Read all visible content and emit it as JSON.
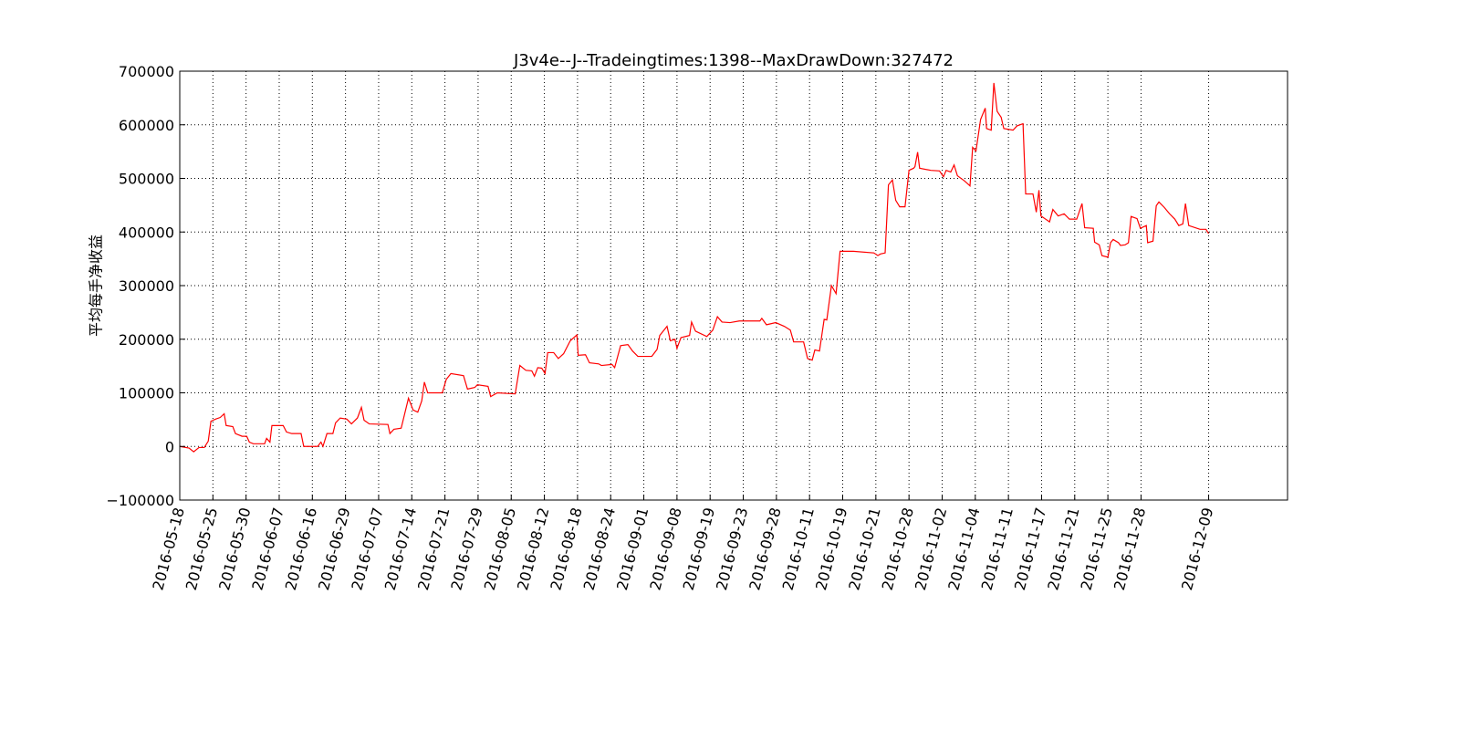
{
  "chart_data": {
    "type": "line",
    "title": "J3v4e--J--Tradeingtimes:1398--MaxDrawDown:327472",
    "y_label": "平均每手净收益",
    "color": "#ff0000",
    "grid": true,
    "xlim": [
      0,
      1671
    ],
    "ylim": [
      -100000,
      700000
    ],
    "yticks": [
      {
        "value": -100000,
        "label": "−100000"
      },
      0,
      100000,
      200000,
      300000,
      400000,
      500000,
      600000,
      700000
    ],
    "xticks": [
      {
        "value": 0,
        "label": "2016-05-18"
      },
      {
        "value": 50,
        "label": "2016-05-25"
      },
      {
        "value": 100,
        "label": "2016-05-30"
      },
      {
        "value": 150,
        "label": "2016-06-07"
      },
      {
        "value": 200,
        "label": "2016-06-16"
      },
      {
        "value": 250,
        "label": "2016-06-29"
      },
      {
        "value": 300,
        "label": "2016-07-07"
      },
      {
        "value": 350,
        "label": "2016-07-14"
      },
      {
        "value": 400,
        "label": "2016-07-21"
      },
      {
        "value": 450,
        "label": "2016-07-29"
      },
      {
        "value": 500,
        "label": "2016-08-05"
      },
      {
        "value": 550,
        "label": "2016-08-12"
      },
      {
        "value": 600,
        "label": "2016-08-18"
      },
      {
        "value": 650,
        "label": "2016-08-24"
      },
      {
        "value": 700,
        "label": "2016-09-01"
      },
      {
        "value": 750,
        "label": "2016-09-08"
      },
      {
        "value": 800,
        "label": "2016-09-19"
      },
      {
        "value": 850,
        "label": "2016-09-23"
      },
      {
        "value": 900,
        "label": "2016-09-28"
      },
      {
        "value": 950,
        "label": "2016-10-11"
      },
      {
        "value": 1000,
        "label": "2016-10-19"
      },
      {
        "value": 1050,
        "label": "2016-10-21"
      },
      {
        "value": 1100,
        "label": "2016-10-28"
      },
      {
        "value": 1150,
        "label": "2016-11-02"
      },
      {
        "value": 1200,
        "label": "2016-11-04"
      },
      {
        "value": 1250,
        "label": "2016-11-11"
      },
      {
        "value": 1300,
        "label": "2016-11-17"
      },
      {
        "value": 1350,
        "label": "2016-11-21"
      },
      {
        "value": 1400,
        "label": "2016-11-25"
      },
      {
        "value": 1450,
        "label": "2016-11-28"
      },
      {
        "value": 1552,
        "label": "2016-12-09"
      }
    ],
    "x": [
      0,
      14,
      21,
      29,
      37,
      43,
      47,
      54,
      61,
      67,
      70,
      80,
      84,
      94,
      101,
      105,
      111,
      128,
      131,
      136,
      139,
      156,
      161,
      169,
      183,
      187,
      208,
      213,
      216,
      222,
      231,
      235,
      242,
      252,
      259,
      268,
      274,
      278,
      286,
      314,
      317,
      323,
      334,
      345,
      352,
      359,
      365,
      369,
      374,
      396,
      402,
      409,
      428,
      434,
      445,
      449,
      465,
      469,
      479,
      506,
      513,
      522,
      531,
      535,
      540,
      546,
      551,
      555,
      564,
      571,
      579,
      589,
      599,
      601,
      612,
      618,
      632,
      636,
      652,
      656,
      665,
      676,
      683,
      691,
      712,
      720,
      724,
      735,
      740,
      747,
      750,
      756,
      769,
      772,
      778,
      795,
      804,
      811,
      818,
      830,
      844,
      875,
      878,
      885,
      899,
      912,
      921,
      926,
      941,
      947,
      954,
      958,
      965,
      972,
      976,
      983,
      990,
      996,
      1016,
      1047,
      1053,
      1057,
      1064,
      1069,
      1075,
      1080,
      1086,
      1094,
      1100,
      1107,
      1109,
      1113,
      1116,
      1133,
      1146,
      1152,
      1156,
      1163,
      1168,
      1173,
      1184,
      1192,
      1196,
      1201,
      1208,
      1215,
      1217,
      1224,
      1228,
      1233,
      1239,
      1243,
      1257,
      1263,
      1272,
      1276,
      1287,
      1292,
      1296,
      1299,
      1312,
      1317,
      1325,
      1334,
      1342,
      1353,
      1361,
      1365,
      1378,
      1380,
      1387,
      1391,
      1400,
      1404,
      1408,
      1416,
      1419,
      1426,
      1431,
      1435,
      1444,
      1449,
      1458,
      1460,
      1468,
      1473,
      1477,
      1485,
      1493,
      1501,
      1507,
      1513,
      1517,
      1522,
      1539,
      1548,
      1552
    ],
    "values": [
      0,
      -3000,
      -10000,
      -2000,
      -2000,
      10000,
      47000,
      51000,
      54000,
      61000,
      39000,
      37000,
      24000,
      19000,
      19000,
      8000,
      5000,
      5000,
      15000,
      8000,
      39000,
      39000,
      27000,
      24000,
      24000,
      0,
      0,
      8000,
      0,
      24000,
      24000,
      44000,
      53000,
      51000,
      42000,
      53000,
      73000,
      49000,
      42000,
      41000,
      24000,
      32000,
      34000,
      90000,
      68000,
      64000,
      85000,
      120000,
      100000,
      100000,
      125000,
      136000,
      132000,
      107000,
      110000,
      115000,
      112000,
      93000,
      100000,
      98000,
      151000,
      142000,
      141000,
      131000,
      147000,
      146000,
      136000,
      175000,
      175000,
      164000,
      173000,
      197000,
      208000,
      170000,
      171000,
      156000,
      154000,
      151000,
      153000,
      147000,
      188000,
      190000,
      178000,
      168000,
      168000,
      181000,
      207000,
      224000,
      197000,
      200000,
      183000,
      203000,
      207000,
      232000,
      215000,
      205000,
      217000,
      242000,
      232000,
      231000,
      234000,
      234000,
      239000,
      227000,
      231000,
      224000,
      217000,
      195000,
      195000,
      164000,
      161000,
      180000,
      178000,
      237000,
      236000,
      300000,
      285000,
      364000,
      364000,
      361000,
      356000,
      359000,
      361000,
      488000,
      497000,
      459000,
      447000,
      447000,
      515000,
      519000,
      522000,
      549000,
      519000,
      515000,
      514000,
      503000,
      515000,
      512000,
      525000,
      505000,
      495000,
      486000,
      558000,
      551000,
      610000,
      631000,
      593000,
      590000,
      678000,
      625000,
      614000,
      593000,
      590000,
      598000,
      602000,
      471000,
      471000,
      437000,
      478000,
      430000,
      419000,
      442000,
      430000,
      434000,
      424000,
      424000,
      453000,
      408000,
      407000,
      381000,
      376000,
      356000,
      353000,
      380000,
      386000,
      380000,
      375000,
      376000,
      380000,
      429000,
      425000,
      407000,
      412000,
      380000,
      383000,
      449000,
      456000,
      446000,
      434000,
      424000,
      412000,
      415000,
      453000,
      412000,
      405000,
      405000,
      397000
    ]
  }
}
